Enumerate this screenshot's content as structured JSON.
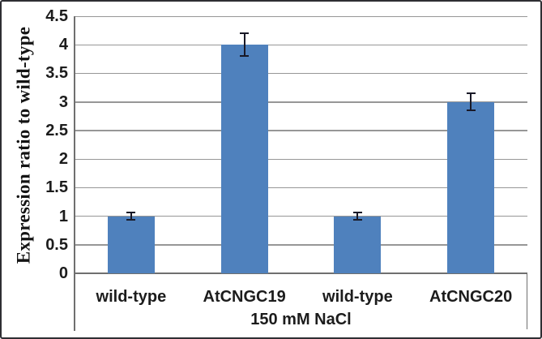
{
  "chart_data": {
    "type": "bar",
    "title": "",
    "ylabel": "Expression ratio to wild-type",
    "xlabel": "150 mM NaCl",
    "categories": [
      "wild-type",
      "AtCNGC19",
      "wild-type",
      "AtCNGC20"
    ],
    "values": [
      1.0,
      4.0,
      1.0,
      3.0
    ],
    "error_bars": [
      0.06,
      0.2,
      0.06,
      0.15
    ],
    "ylim": [
      0,
      4.5
    ],
    "ytick_step": 0.5,
    "ytick_labels": [
      "0",
      "0.5",
      "1",
      "1.5",
      "2",
      "2.5",
      "3",
      "3.5",
      "4",
      "4.5"
    ],
    "grid": true,
    "legend": "none",
    "bar_color": "#4F81BD",
    "error_color": "#191927",
    "gridline_color": "#979797",
    "axis_color": "#6f6f6f",
    "text_color": "#1c1c1c"
  }
}
